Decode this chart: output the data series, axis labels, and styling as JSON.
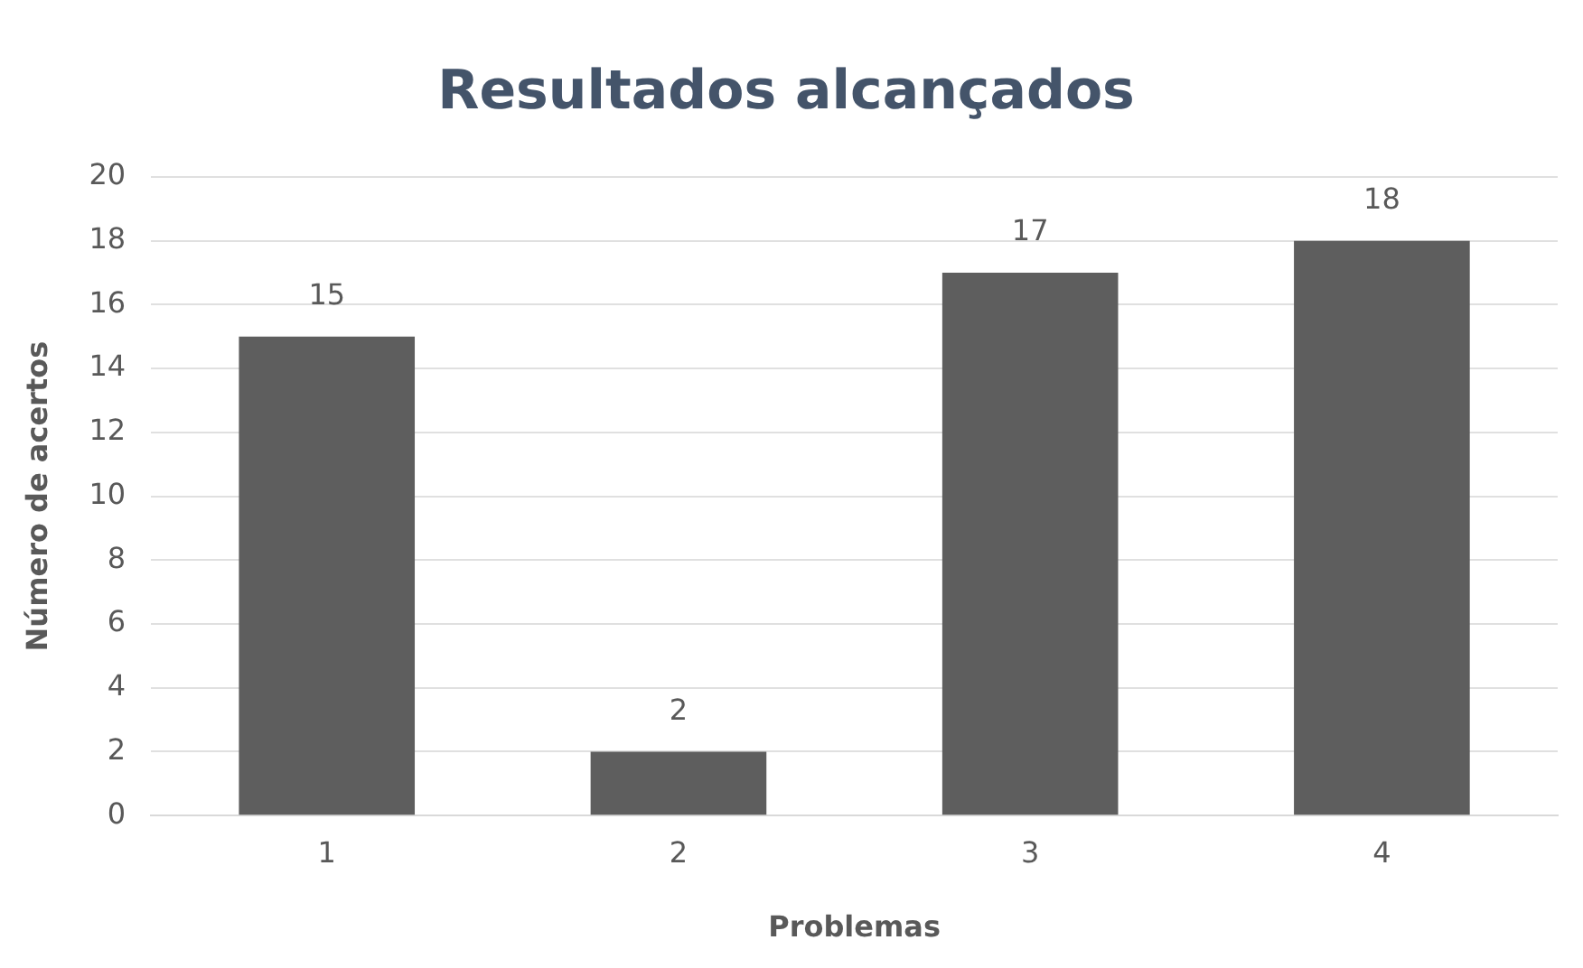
{
  "chart_data": {
    "type": "bar",
    "title": "Resultados alcançados",
    "xlabel": "Problemas",
    "ylabel": "Número de acertos",
    "categories": [
      "1",
      "2",
      "3",
      "4"
    ],
    "values": [
      15,
      2,
      17,
      18
    ],
    "color": "#5e5e5e",
    "ylim": [
      0,
      20
    ],
    "yticks": [
      0,
      2,
      4,
      6,
      8,
      10,
      12,
      14,
      16,
      18,
      20
    ],
    "grid": "y",
    "data_labels": true
  }
}
